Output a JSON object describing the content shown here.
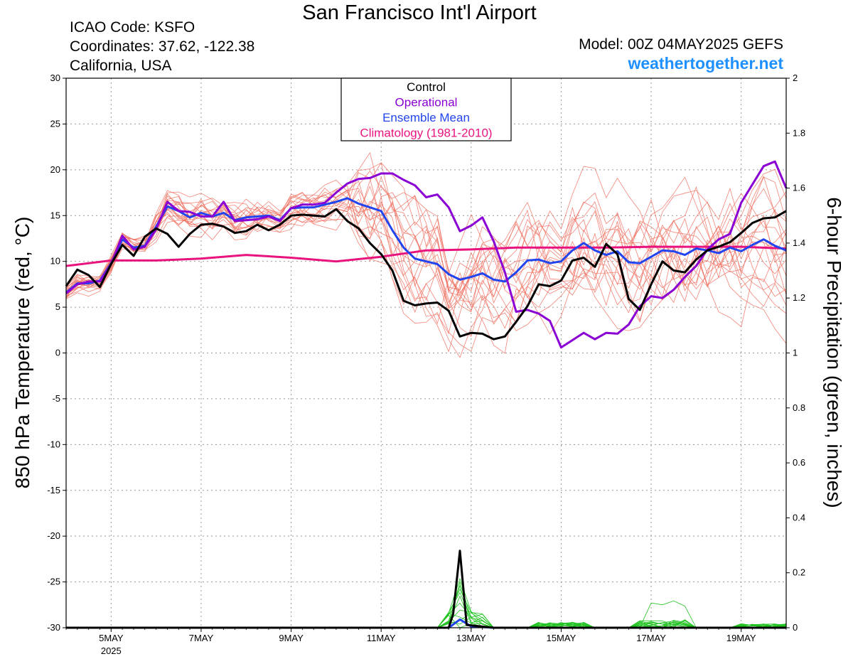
{
  "header": {
    "title": "San Francisco Int'l Airport",
    "icao": "ICAO Code: KSFO",
    "coordinates": "Coordinates: 37.62, -122.38",
    "region": "California, USA",
    "model": "Model: 00Z 04MAY2025 GEFS",
    "website": "weathertogether.net"
  },
  "chart_data": {
    "type": "line",
    "ylabel": "850 hPa Temperature (red, °C)",
    "y2label": "6-hour Precipitation (green, inches)",
    "ylim": [
      -30,
      30
    ],
    "y2lim": [
      0,
      2
    ],
    "yticks": [
      "30",
      "25",
      "20",
      "15",
      "10",
      "5",
      "0",
      "-5",
      "-10",
      "-15",
      "-20",
      "-25",
      "-30"
    ],
    "y2ticks": [
      "2",
      "1.8",
      "1.6",
      "1.4",
      "1.2",
      "1",
      "0.8",
      "0.6",
      "0.4",
      "0.2",
      "0"
    ],
    "xlim": [
      4.0,
      20.0
    ],
    "xticks": [
      {
        "x": 5,
        "label": "5MAY",
        "sub": "2025"
      },
      {
        "x": 7,
        "label": "7MAY",
        "sub": ""
      },
      {
        "x": 9,
        "label": "9MAY",
        "sub": ""
      },
      {
        "x": 11,
        "label": "11MAY",
        "sub": ""
      },
      {
        "x": 13,
        "label": "13MAY",
        "sub": ""
      },
      {
        "x": 15,
        "label": "15MAY",
        "sub": ""
      },
      {
        "x": 17,
        "label": "17MAY",
        "sub": ""
      },
      {
        "x": 19,
        "label": "19MAY",
        "sub": ""
      }
    ],
    "grid": true,
    "legend_placement": "top-center",
    "legend": [
      {
        "label": "Control",
        "color": "#000000"
      },
      {
        "label": "Operational",
        "color": "#8a00d4"
      },
      {
        "label": "Ensemble Mean",
        "color": "#2244ee"
      },
      {
        "label": "Climatology (1981-2010)",
        "color": "#e8137e"
      }
    ],
    "series": [
      {
        "name": "Control",
        "color": "#000000",
        "width": 3,
        "axis": "temp",
        "points": [
          [
            4.0,
            7.3
          ],
          [
            4.25,
            9.1
          ],
          [
            4.5,
            8.5
          ],
          [
            4.75,
            7.2
          ],
          [
            5.0,
            9.7
          ],
          [
            5.25,
            11.8
          ],
          [
            5.5,
            10.6
          ],
          [
            5.75,
            12.7
          ],
          [
            6.0,
            13.6
          ],
          [
            6.25,
            13.0
          ],
          [
            6.5,
            11.6
          ],
          [
            6.75,
            13.0
          ],
          [
            7.0,
            14.0
          ],
          [
            7.25,
            14.1
          ],
          [
            7.5,
            13.8
          ],
          [
            7.75,
            13.1
          ],
          [
            8.0,
            13.3
          ],
          [
            8.25,
            14.0
          ],
          [
            8.5,
            13.4
          ],
          [
            8.75,
            14.0
          ],
          [
            9.0,
            15.0
          ],
          [
            9.25,
            15.1
          ],
          [
            9.5,
            15.0
          ],
          [
            9.75,
            14.9
          ],
          [
            10.0,
            15.7
          ],
          [
            10.25,
            14.4
          ],
          [
            10.5,
            13.6
          ],
          [
            10.75,
            12.0
          ],
          [
            11.0,
            10.8
          ],
          [
            11.25,
            9.0
          ],
          [
            11.5,
            5.7
          ],
          [
            11.75,
            5.2
          ],
          [
            12.0,
            5.4
          ],
          [
            12.25,
            5.5
          ],
          [
            12.5,
            4.6
          ],
          [
            12.75,
            1.8
          ],
          [
            13.0,
            2.2
          ],
          [
            13.25,
            2.1
          ],
          [
            13.5,
            1.5
          ],
          [
            13.75,
            1.8
          ],
          [
            14.0,
            3.4
          ],
          [
            14.25,
            5.1
          ],
          [
            14.5,
            7.5
          ],
          [
            14.75,
            7.3
          ],
          [
            15.0,
            7.9
          ],
          [
            15.25,
            10.1
          ],
          [
            15.5,
            10.4
          ],
          [
            15.75,
            9.4
          ],
          [
            16.0,
            11.9
          ],
          [
            16.25,
            10.8
          ],
          [
            16.5,
            5.9
          ],
          [
            16.75,
            4.7
          ],
          [
            17.0,
            7.5
          ],
          [
            17.25,
            10.0
          ],
          [
            17.5,
            9.0
          ],
          [
            17.75,
            8.8
          ],
          [
            18.0,
            10.2
          ],
          [
            18.25,
            11.2
          ],
          [
            18.5,
            11.6
          ],
          [
            18.75,
            12.1
          ],
          [
            19.0,
            13.1
          ],
          [
            19.25,
            14.2
          ],
          [
            19.5,
            14.7
          ],
          [
            19.75,
            14.8
          ],
          [
            20.0,
            15.5
          ]
        ]
      },
      {
        "name": "Operational",
        "color": "#8a00d4",
        "width": 3,
        "axis": "temp",
        "points": [
          [
            4.0,
            6.5
          ],
          [
            4.25,
            7.5
          ],
          [
            4.5,
            7.8
          ],
          [
            4.75,
            7.8
          ],
          [
            5.0,
            9.7
          ],
          [
            5.25,
            12.8
          ],
          [
            5.5,
            11.3
          ],
          [
            5.75,
            11.6
          ],
          [
            6.0,
            13.5
          ],
          [
            6.25,
            16.5
          ],
          [
            6.5,
            15.5
          ],
          [
            6.75,
            15.4
          ],
          [
            7.0,
            14.9
          ],
          [
            7.25,
            14.9
          ],
          [
            7.5,
            16.5
          ],
          [
            7.75,
            14.4
          ],
          [
            8.0,
            14.5
          ],
          [
            8.25,
            14.6
          ],
          [
            8.5,
            14.9
          ],
          [
            8.75,
            14.4
          ],
          [
            9.0,
            15.8
          ],
          [
            9.25,
            16.2
          ],
          [
            9.5,
            16.2
          ],
          [
            9.75,
            16.4
          ],
          [
            10.0,
            17.5
          ],
          [
            10.25,
            18.5
          ],
          [
            10.5,
            19.0
          ],
          [
            10.75,
            19.1
          ],
          [
            11.0,
            19.6
          ],
          [
            11.25,
            19.6
          ],
          [
            11.5,
            18.9
          ],
          [
            11.75,
            18.3
          ],
          [
            12.0,
            17.0
          ],
          [
            12.25,
            17.3
          ],
          [
            12.5,
            15.9
          ],
          [
            12.75,
            13.3
          ],
          [
            13.0,
            13.9
          ],
          [
            13.25,
            14.8
          ],
          [
            13.5,
            12.2
          ],
          [
            13.75,
            8.8
          ],
          [
            14.0,
            4.5
          ],
          [
            14.25,
            4.7
          ],
          [
            14.5,
            4.3
          ],
          [
            14.75,
            3.5
          ],
          [
            15.0,
            0.6
          ],
          [
            15.25,
            1.4
          ],
          [
            15.5,
            2.2
          ],
          [
            15.75,
            1.5
          ],
          [
            16.0,
            2.2
          ],
          [
            16.25,
            2.1
          ],
          [
            16.5,
            3.1
          ],
          [
            16.75,
            5.1
          ],
          [
            17.0,
            6.2
          ],
          [
            17.25,
            6.0
          ],
          [
            17.5,
            6.9
          ],
          [
            17.75,
            8.3
          ],
          [
            18.0,
            9.5
          ],
          [
            18.25,
            11.3
          ],
          [
            18.5,
            12.4
          ],
          [
            18.75,
            13.0
          ],
          [
            19.0,
            16.4
          ],
          [
            19.25,
            18.4
          ],
          [
            19.5,
            20.4
          ],
          [
            19.75,
            20.9
          ],
          [
            20.0,
            18.0
          ]
        ]
      },
      {
        "name": "Ensemble Mean",
        "color": "#2244ee",
        "width": 3,
        "axis": "temp",
        "points": [
          [
            4.0,
            6.6
          ],
          [
            4.25,
            7.6
          ],
          [
            4.5,
            7.6
          ],
          [
            4.75,
            7.9
          ],
          [
            5.0,
            9.8
          ],
          [
            5.25,
            12.4
          ],
          [
            5.5,
            11.5
          ],
          [
            5.75,
            11.7
          ],
          [
            6.0,
            13.8
          ],
          [
            6.25,
            16.0
          ],
          [
            6.5,
            15.5
          ],
          [
            6.75,
            14.8
          ],
          [
            7.0,
            15.3
          ],
          [
            7.25,
            14.9
          ],
          [
            7.5,
            15.3
          ],
          [
            7.75,
            14.5
          ],
          [
            8.0,
            14.8
          ],
          [
            8.25,
            14.9
          ],
          [
            8.5,
            15.0
          ],
          [
            8.75,
            14.5
          ],
          [
            9.0,
            15.8
          ],
          [
            9.25,
            15.9
          ],
          [
            9.5,
            15.9
          ],
          [
            9.75,
            16.2
          ],
          [
            10.0,
            16.5
          ],
          [
            10.25,
            16.9
          ],
          [
            10.5,
            16.3
          ],
          [
            10.75,
            15.9
          ],
          [
            11.0,
            15.5
          ],
          [
            11.25,
            13.4
          ],
          [
            11.5,
            11.5
          ],
          [
            11.75,
            10.3
          ],
          [
            12.0,
            10.0
          ],
          [
            12.25,
            9.7
          ],
          [
            12.5,
            8.6
          ],
          [
            12.75,
            8.0
          ],
          [
            13.0,
            8.3
          ],
          [
            13.25,
            8.7
          ],
          [
            13.5,
            8.0
          ],
          [
            13.75,
            7.8
          ],
          [
            14.0,
            8.8
          ],
          [
            14.25,
            10.1
          ],
          [
            14.5,
            10.2
          ],
          [
            14.75,
            9.8
          ],
          [
            15.0,
            10.0
          ],
          [
            15.25,
            11.2
          ],
          [
            15.5,
            12.0
          ],
          [
            15.75,
            11.2
          ],
          [
            16.0,
            10.7
          ],
          [
            16.25,
            11.1
          ],
          [
            16.5,
            9.9
          ],
          [
            16.75,
            9.8
          ],
          [
            17.0,
            10.5
          ],
          [
            17.25,
            11.2
          ],
          [
            17.5,
            11.1
          ],
          [
            17.75,
            10.7
          ],
          [
            18.0,
            11.4
          ],
          [
            18.25,
            11.2
          ],
          [
            18.5,
            10.9
          ],
          [
            18.75,
            11.5
          ],
          [
            19.0,
            11.1
          ],
          [
            19.25,
            11.8
          ],
          [
            19.5,
            12.4
          ],
          [
            19.75,
            11.7
          ],
          [
            20.0,
            11.2
          ]
        ]
      },
      {
        "name": "Climatology (1981-2010)",
        "color": "#e8137e",
        "width": 3,
        "axis": "temp",
        "points": [
          [
            4.0,
            9.5
          ],
          [
            5.0,
            10.1
          ],
          [
            6.0,
            10.1
          ],
          [
            7.0,
            10.3
          ],
          [
            8.0,
            10.7
          ],
          [
            9.0,
            10.4
          ],
          [
            10.0,
            10.0
          ],
          [
            11.0,
            10.5
          ],
          [
            12.0,
            11.2
          ],
          [
            13.0,
            11.3
          ],
          [
            14.0,
            11.5
          ],
          [
            15.0,
            11.5
          ],
          [
            16.0,
            11.5
          ],
          [
            17.0,
            11.6
          ],
          [
            18.0,
            11.6
          ],
          [
            19.0,
            11.6
          ],
          [
            20.0,
            11.4
          ]
        ]
      },
      {
        "name": "Control precipitation",
        "color": "#000000",
        "width": 3,
        "axis": "precip",
        "points": [
          [
            4.0,
            0
          ],
          [
            12.5,
            0
          ],
          [
            12.6,
            0.05
          ],
          [
            12.75,
            0.28
          ],
          [
            12.9,
            0.01
          ],
          [
            13.5,
            0
          ],
          [
            20.0,
            0
          ]
        ]
      },
      {
        "name": "Ensemble mean precipitation",
        "color": "#2244ee",
        "width": 3,
        "axis": "precip",
        "points": [
          [
            4.0,
            0
          ],
          [
            12.5,
            0
          ],
          [
            12.75,
            0.03
          ],
          [
            13.0,
            0.005
          ],
          [
            13.5,
            0
          ],
          [
            20.0,
            0
          ]
        ]
      }
    ]
  }
}
